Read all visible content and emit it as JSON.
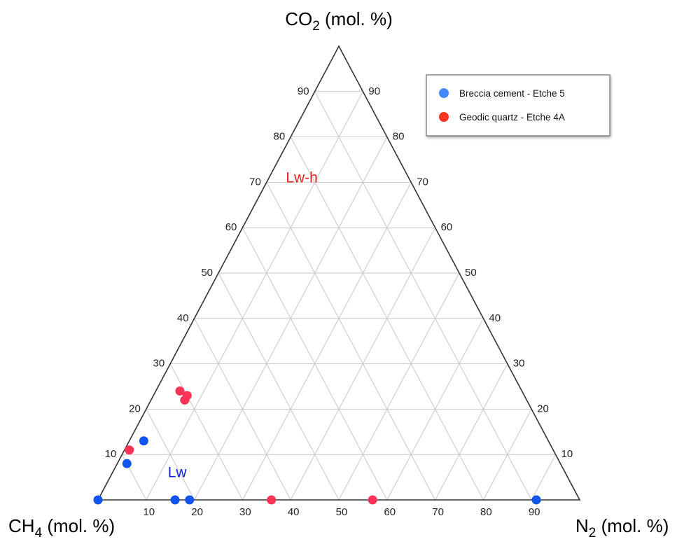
{
  "chart_data": {
    "type": "ternary-scatter",
    "axes": {
      "top": {
        "base": "CO",
        "sub": "2",
        "unit": " (mol. %)"
      },
      "left": {
        "base": "CH",
        "sub": "4",
        "unit": " (mol. %)"
      },
      "right": {
        "base": "N",
        "sub": "2",
        "unit": " (mol. %)"
      }
    },
    "ticks": [
      "10",
      "20",
      "30",
      "40",
      "50",
      "60",
      "70",
      "80",
      "90"
    ],
    "grid": true,
    "legend": {
      "placement": "top-right",
      "entries": [
        {
          "label": "Breccia cement  - Etche 5",
          "color": "#4488ff"
        },
        {
          "label": "Geodic quartz - Etche 4A",
          "color": "#ff3322"
        }
      ]
    },
    "regions": [
      {
        "label": "Lw-h",
        "color": "#ee2222",
        "co2": 70,
        "n2": 4
      },
      {
        "label": "Lw",
        "color": "#1122dd",
        "co2": 5,
        "n2": 12
      }
    ],
    "series": [
      {
        "name": "Breccia cement  - Etche 5",
        "color": "#1155ee",
        "points": [
          {
            "ch4": 100,
            "co2": 0,
            "n2": 0
          },
          {
            "ch4": 84,
            "co2": 0,
            "n2": 16
          },
          {
            "ch4": 81,
            "co2": 0,
            "n2": 19
          },
          {
            "ch4": 9,
            "co2": 0,
            "n2": 91
          },
          {
            "ch4": 90,
            "co2": 8,
            "n2": 2
          },
          {
            "ch4": 84,
            "co2": 13,
            "n2": 3
          }
        ]
      },
      {
        "name": "Geodic quartz - Etche 4A",
        "color": "#ff3355",
        "points": [
          {
            "ch4": 64,
            "co2": 0,
            "n2": 36
          },
          {
            "ch4": 43,
            "co2": 0,
            "n2": 57
          },
          {
            "ch4": 88,
            "co2": 11,
            "n2": 1
          },
          {
            "ch4": 71,
            "co2": 24,
            "n2": 5
          },
          {
            "ch4": 71,
            "co2": 22,
            "n2": 7
          },
          {
            "ch4": 70,
            "co2": 23,
            "n2": 7
          }
        ]
      }
    ]
  }
}
